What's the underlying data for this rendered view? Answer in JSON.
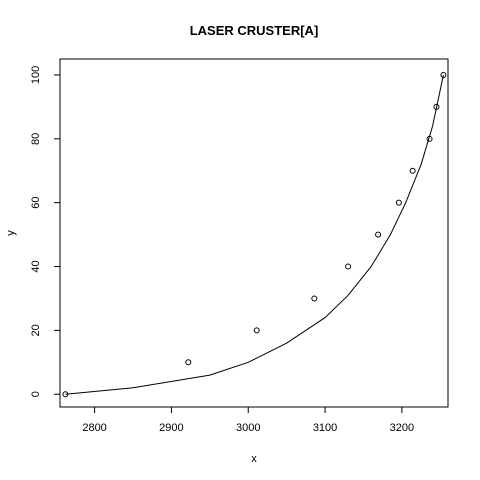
{
  "chart_data": {
    "type": "scatter",
    "title": "LASER CRUSTER[A]",
    "xlabel": "x",
    "ylabel": "y",
    "xlim": [
      2755,
      3260
    ],
    "ylim": [
      -4,
      105
    ],
    "x_ticks": [
      2800,
      2900,
      3000,
      3100,
      3200
    ],
    "y_ticks": [
      0,
      20,
      40,
      60,
      80,
      100
    ],
    "grid": false,
    "legend": "none",
    "points": [
      {
        "x": 2762,
        "y": 0
      },
      {
        "x": 2922,
        "y": 10
      },
      {
        "x": 3011,
        "y": 20
      },
      {
        "x": 3086,
        "y": 30
      },
      {
        "x": 3130,
        "y": 40
      },
      {
        "x": 3169,
        "y": 50
      },
      {
        "x": 3196,
        "y": 60
      },
      {
        "x": 3214,
        "y": 70
      },
      {
        "x": 3236,
        "y": 80
      },
      {
        "x": 3245,
        "y": 90
      },
      {
        "x": 3254,
        "y": 100
      }
    ],
    "fitted_curve": [
      {
        "x": 2762,
        "y": 0
      },
      {
        "x": 2850,
        "y": 2
      },
      {
        "x": 2950,
        "y": 6
      },
      {
        "x": 3000,
        "y": 10
      },
      {
        "x": 3050,
        "y": 16
      },
      {
        "x": 3100,
        "y": 24
      },
      {
        "x": 3130,
        "y": 31
      },
      {
        "x": 3160,
        "y": 40
      },
      {
        "x": 3185,
        "y": 50
      },
      {
        "x": 3205,
        "y": 60
      },
      {
        "x": 3225,
        "y": 72
      },
      {
        "x": 3240,
        "y": 84
      },
      {
        "x": 3254,
        "y": 100
      }
    ]
  }
}
